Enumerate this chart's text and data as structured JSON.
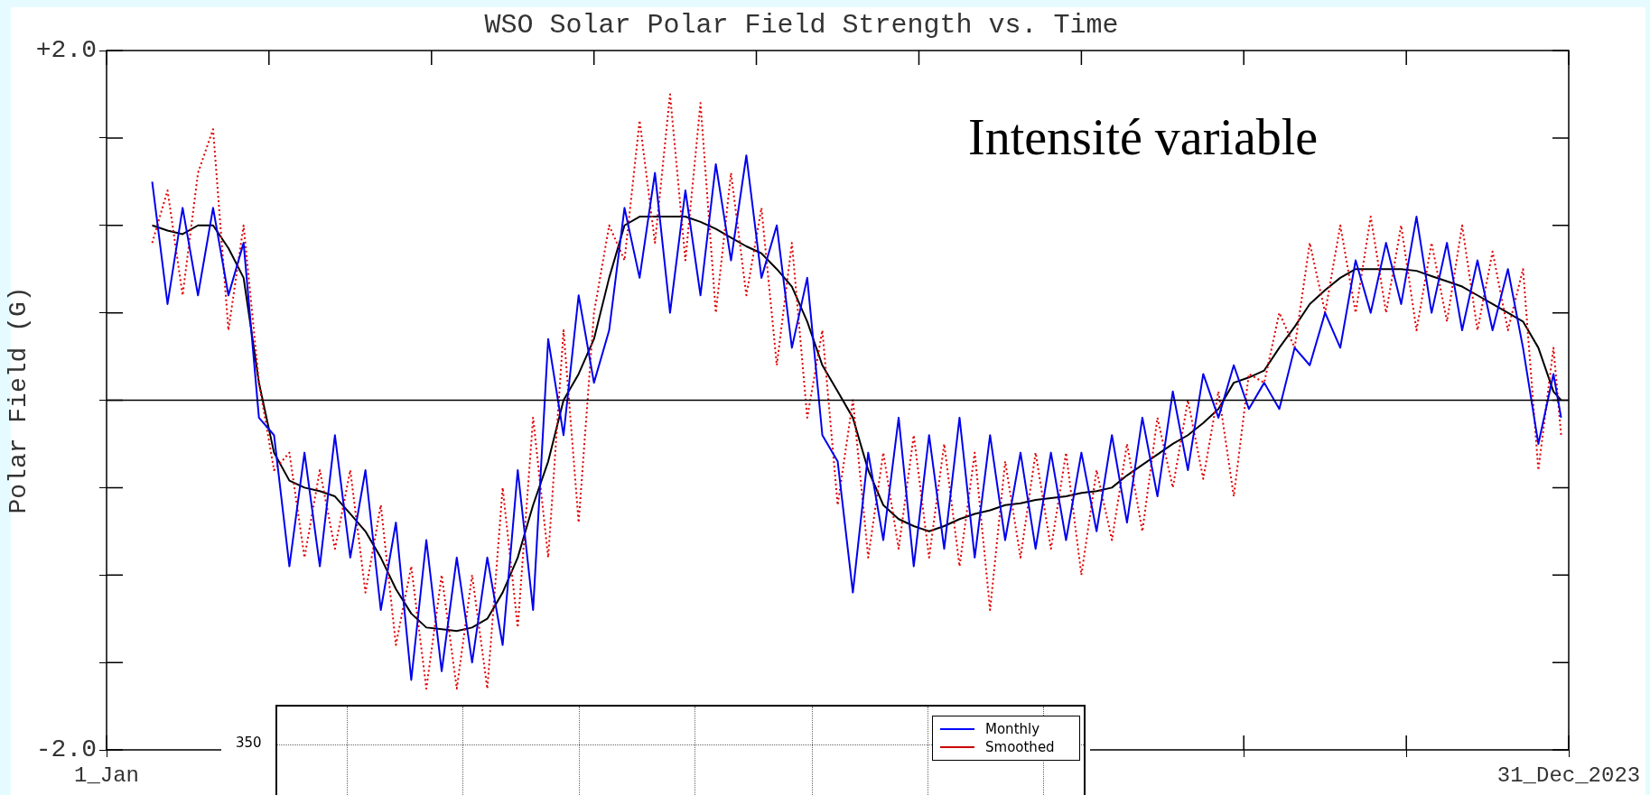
{
  "chart_data": [
    {
      "type": "line",
      "title": "WSO Solar Polar Field Strength vs. Time",
      "ylabel": "Polar Field (G)",
      "xlim": [
        "1976-01-01",
        "2023-12-31"
      ],
      "xticks": [
        {
          "value": "1976-01-01",
          "label": "1_Jan"
        },
        {
          "value": "1981-05-01",
          "label": null
        },
        {
          "value": "1986-09-01",
          "label": null
        },
        {
          "value": "1992-01-01",
          "label": null
        },
        {
          "value": "1997-05-01",
          "label": null
        },
        {
          "value": "2002-09-01",
          "label": null
        },
        {
          "value": "2008-01-01",
          "label": null
        },
        {
          "value": "2013-05-01",
          "label": null
        },
        {
          "value": "2018-09-01",
          "label": null
        },
        {
          "value": "2023-12-31",
          "label": "31_Dec_2023"
        }
      ],
      "ylim": [
        -2,
        2
      ],
      "yticks": [
        {
          "value": -2,
          "label": "-2.0"
        },
        {
          "value": -1.5,
          "label": null
        },
        {
          "value": -1,
          "label": null
        },
        {
          "value": -0.5,
          "label": null
        },
        {
          "value": 0,
          "label": null
        },
        {
          "value": 0.5,
          "label": null
        },
        {
          "value": 1,
          "label": null
        },
        {
          "value": 1.5,
          "label": null
        },
        {
          "value": 2,
          "label": "+2.0"
        }
      ],
      "ref_lines": [
        {
          "axis": "y",
          "value": 0,
          "color": "#000000"
        }
      ],
      "annotations": [
        "Intensité variable"
      ],
      "x": [
        "1977-07-01",
        "1978-01-01",
        "1978-07-01",
        "1979-01-01",
        "1979-07-01",
        "1980-01-01",
        "1980-07-01",
        "1981-01-01",
        "1981-07-01",
        "1982-01-01",
        "1982-07-01",
        "1983-01-01",
        "1983-07-01",
        "1984-01-01",
        "1984-07-01",
        "1985-01-01",
        "1985-07-01",
        "1986-01-01",
        "1986-07-01",
        "1987-01-01",
        "1987-07-01",
        "1988-01-01",
        "1988-07-01",
        "1989-01-01",
        "1989-07-01",
        "1990-01-01",
        "1990-07-01",
        "1991-01-01",
        "1991-07-01",
        "1992-01-01",
        "1992-07-01",
        "1993-01-01",
        "1993-07-01",
        "1994-01-01",
        "1994-07-01",
        "1995-01-01",
        "1995-07-01",
        "1996-01-01",
        "1996-07-01",
        "1997-01-01",
        "1997-07-01",
        "1998-01-01",
        "1998-07-01",
        "1999-01-01",
        "1999-07-01",
        "2000-01-01",
        "2000-07-01",
        "2001-01-01",
        "2001-07-01",
        "2002-01-01",
        "2002-07-01",
        "2003-01-01",
        "2003-07-01",
        "2004-01-01",
        "2004-07-01",
        "2005-01-01",
        "2005-07-01",
        "2006-01-01",
        "2006-07-01",
        "2007-01-01",
        "2007-07-01",
        "2008-01-01",
        "2008-07-01",
        "2009-01-01",
        "2009-07-01",
        "2010-01-01",
        "2010-07-01",
        "2011-01-01",
        "2011-07-01",
        "2012-01-01",
        "2012-07-01",
        "2013-01-01",
        "2013-07-01",
        "2014-01-01",
        "2014-07-01",
        "2015-01-01",
        "2015-07-01",
        "2016-01-01",
        "2016-07-01",
        "2017-01-01",
        "2017-07-01",
        "2018-01-01",
        "2018-07-01",
        "2019-01-01",
        "2019-07-01",
        "2020-01-01",
        "2020-07-01",
        "2021-01-01",
        "2021-07-01",
        "2022-01-01",
        "2022-07-01",
        "2023-01-01",
        "2023-07-01",
        "2023-10-01"
      ],
      "series": [
        {
          "color": "#0000ee",
          "line_style": "solid",
          "values": [
            1.25,
            0.55,
            1.1,
            0.6,
            1.1,
            0.6,
            0.9,
            -0.1,
            -0.2,
            -0.95,
            -0.3,
            -0.95,
            -0.2,
            -0.9,
            -0.4,
            -1.2,
            -0.7,
            -1.6,
            -0.8,
            -1.55,
            -0.9,
            -1.5,
            -0.9,
            -1.4,
            -0.4,
            -1.2,
            0.35,
            -0.2,
            0.6,
            0.1,
            0.4,
            1.1,
            0.7,
            1.3,
            0.5,
            1.2,
            0.6,
            1.35,
            0.8,
            1.4,
            0.7,
            1.0,
            0.3,
            0.7,
            -0.2,
            -0.35,
            -1.1,
            -0.3,
            -0.8,
            -0.1,
            -0.95,
            -0.2,
            -0.85,
            -0.1,
            -0.9,
            -0.2,
            -0.8,
            -0.3,
            -0.85,
            -0.3,
            -0.8,
            -0.3,
            -0.75,
            -0.2,
            -0.7,
            -0.1,
            -0.55,
            0.05,
            -0.4,
            0.15,
            -0.1,
            0.2,
            -0.05,
            0.1,
            -0.05,
            0.3,
            0.2,
            0.5,
            0.3,
            0.8,
            0.5,
            0.9,
            0.55,
            1.05,
            0.5,
            0.9,
            0.4,
            0.8,
            0.4,
            0.75,
            0.3,
            -0.25,
            0.15,
            -0.1
          ]
        },
        {
          "color": "#e00000",
          "line_style": "dotted",
          "values": [
            0.9,
            1.2,
            0.6,
            1.3,
            1.55,
            0.4,
            1.0,
            0.1,
            -0.4,
            -0.3,
            -0.9,
            -0.4,
            -0.85,
            -0.4,
            -1.1,
            -0.6,
            -1.4,
            -0.95,
            -1.65,
            -1.0,
            -1.65,
            -1.0,
            -1.65,
            -0.5,
            -1.3,
            -0.1,
            -0.9,
            0.4,
            -0.7,
            0.5,
            1.0,
            0.8,
            1.6,
            0.9,
            1.75,
            0.8,
            1.7,
            0.5,
            1.3,
            0.6,
            1.1,
            0.2,
            0.9,
            -0.1,
            0.4,
            -0.6,
            0.0,
            -0.9,
            -0.3,
            -0.85,
            -0.2,
            -0.9,
            -0.25,
            -0.95,
            -0.3,
            -1.2,
            -0.35,
            -0.9,
            -0.3,
            -0.85,
            -0.3,
            -1.0,
            -0.4,
            -0.8,
            -0.25,
            -0.75,
            -0.1,
            -0.5,
            0.0,
            -0.45,
            0.05,
            -0.55,
            0.15,
            0.1,
            0.5,
            0.3,
            0.9,
            0.5,
            1.0,
            0.5,
            1.05,
            0.5,
            1.0,
            0.4,
            0.9,
            0.45,
            1.0,
            0.4,
            0.85,
            0.4,
            0.75,
            -0.4,
            0.3,
            -0.2
          ]
        },
        {
          "color": "#000000",
          "line_style": "solid",
          "values": [
            1.0,
            0.97,
            0.95,
            1.0,
            1.0,
            0.87,
            0.7,
            0.1,
            -0.3,
            -0.46,
            -0.5,
            -0.52,
            -0.55,
            -0.65,
            -0.75,
            -0.9,
            -1.08,
            -1.22,
            -1.3,
            -1.31,
            -1.32,
            -1.3,
            -1.25,
            -1.1,
            -0.9,
            -0.6,
            -0.35,
            0.0,
            0.15,
            0.35,
            0.7,
            1.0,
            1.05,
            1.05,
            1.05,
            1.05,
            1.02,
            0.98,
            0.93,
            0.88,
            0.84,
            0.75,
            0.65,
            0.45,
            0.2,
            0.05,
            -0.1,
            -0.4,
            -0.6,
            -0.68,
            -0.72,
            -0.75,
            -0.72,
            -0.68,
            -0.65,
            -0.63,
            -0.6,
            -0.59,
            -0.57,
            -0.56,
            -0.55,
            -0.53,
            -0.52,
            -0.5,
            -0.43,
            -0.37,
            -0.31,
            -0.25,
            -0.2,
            -0.13,
            -0.05,
            0.1,
            0.13,
            0.17,
            0.3,
            0.42,
            0.55,
            0.63,
            0.7,
            0.75,
            0.75,
            0.75,
            0.75,
            0.74,
            0.71,
            0.68,
            0.65,
            0.6,
            0.55,
            0.5,
            0.45,
            0.3,
            0.05,
            0.0
          ]
        }
      ]
    },
    {
      "type": "other",
      "annotations": [
        "350"
      ],
      "legend": "top right",
      "series": [
        {
          "name": "Monthly",
          "color": "#0000ff"
        },
        {
          "name": "Smoothed",
          "color": "#cc0000"
        }
      ]
    }
  ]
}
